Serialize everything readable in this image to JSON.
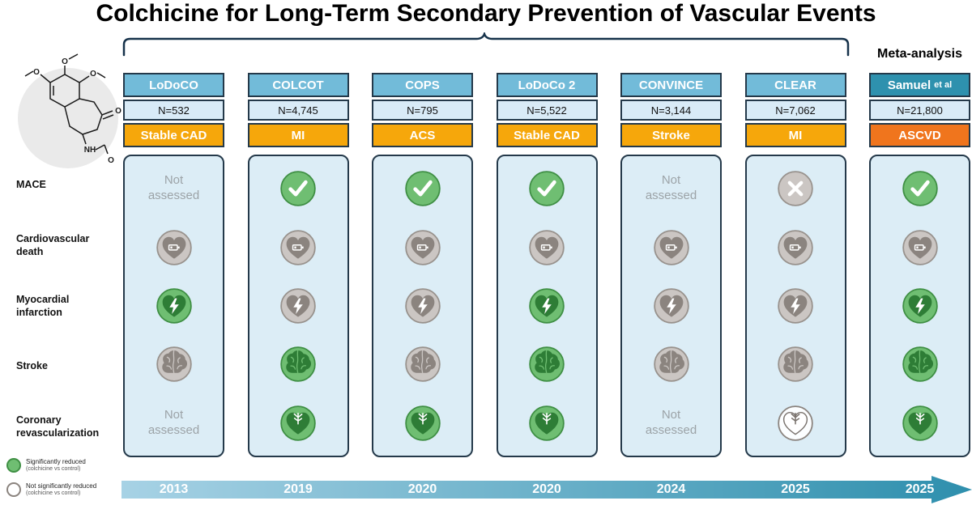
{
  "title": "Colchicine for Long-Term Secondary Prevention of Vascular Events",
  "meta_label": "Meta-analysis",
  "molecule": "colchicine chemical structure",
  "row_labels": [
    "MACE",
    "Cardiovascular death",
    "Myocardial infarction",
    "Stroke",
    "Coronary revascularization"
  ],
  "legend": [
    {
      "line1": "Significantly reduced",
      "line2": "(colchicine vs control)",
      "state": "green"
    },
    {
      "line1": "Not significantly reduced",
      "line2": "(colchicine vs control)",
      "state": "white"
    }
  ],
  "colors": {
    "header_blue": "#72BBD9",
    "meta_teal": "#2E91AE",
    "orange": "#F6A70B",
    "meta_orange": "#F0751D",
    "panel_blue": "#DCEDF6",
    "green_icon": "#6FBE72",
    "gray_icon": "#CBC6C3",
    "timeline_start": "#A7D2E5",
    "timeline_end": "#2E8FAD"
  },
  "columns": [
    {
      "name": "LoDoCO",
      "suffix": "",
      "n": "N=532",
      "population": "Stable CAD",
      "year": "2013",
      "meta": false,
      "cells": [
        {
          "kind": "na",
          "text": "Not assessed"
        },
        {
          "kind": "heart-battery",
          "state": "gray"
        },
        {
          "kind": "heart-bolt",
          "state": "green"
        },
        {
          "kind": "brain",
          "state": "gray"
        },
        {
          "kind": "na",
          "text": "Not assessed"
        }
      ]
    },
    {
      "name": "COLCOT",
      "suffix": "",
      "n": "N=4,745",
      "population": "MI",
      "year": "2019",
      "meta": false,
      "cells": [
        {
          "kind": "check",
          "state": "green"
        },
        {
          "kind": "heart-battery",
          "state": "gray"
        },
        {
          "kind": "heart-bolt",
          "state": "gray"
        },
        {
          "kind": "brain",
          "state": "green"
        },
        {
          "kind": "heart-vessel",
          "state": "green"
        }
      ]
    },
    {
      "name": "COPS",
      "suffix": "",
      "n": "N=795",
      "population": "ACS",
      "year": "2020",
      "meta": false,
      "cells": [
        {
          "kind": "check",
          "state": "green"
        },
        {
          "kind": "heart-battery",
          "state": "gray"
        },
        {
          "kind": "heart-bolt",
          "state": "gray"
        },
        {
          "kind": "brain",
          "state": "gray"
        },
        {
          "kind": "heart-vessel",
          "state": "green"
        }
      ]
    },
    {
      "name": "LoDoCo 2",
      "suffix": "",
      "n": "N=5,522",
      "population": "Stable CAD",
      "year": "2020",
      "meta": false,
      "cells": [
        {
          "kind": "check",
          "state": "green"
        },
        {
          "kind": "heart-battery",
          "state": "gray"
        },
        {
          "kind": "heart-bolt",
          "state": "green"
        },
        {
          "kind": "brain",
          "state": "green"
        },
        {
          "kind": "heart-vessel",
          "state": "green"
        }
      ]
    },
    {
      "name": "CONVINCE",
      "suffix": "",
      "n": "N=3,144",
      "population": "Stroke",
      "year": "2024",
      "meta": false,
      "cells": [
        {
          "kind": "na",
          "text": "Not assessed"
        },
        {
          "kind": "heart-battery",
          "state": "gray"
        },
        {
          "kind": "heart-bolt",
          "state": "gray"
        },
        {
          "kind": "brain",
          "state": "gray"
        },
        {
          "kind": "na",
          "text": "Not assessed"
        }
      ]
    },
    {
      "name": "CLEAR",
      "suffix": "",
      "n": "N=7,062",
      "population": "MI",
      "year": "2025",
      "meta": false,
      "cells": [
        {
          "kind": "cross",
          "state": "gray"
        },
        {
          "kind": "heart-battery",
          "state": "gray"
        },
        {
          "kind": "heart-bolt",
          "state": "gray"
        },
        {
          "kind": "brain",
          "state": "gray"
        },
        {
          "kind": "heart-vessel",
          "state": "white"
        }
      ]
    },
    {
      "name": "Samuel",
      "suffix": "et al",
      "n": "N=21,800",
      "population": "ASCVD",
      "year": "2025",
      "meta": true,
      "cells": [
        {
          "kind": "check",
          "state": "green"
        },
        {
          "kind": "heart-battery",
          "state": "gray"
        },
        {
          "kind": "heart-bolt",
          "state": "green"
        },
        {
          "kind": "brain",
          "state": "green"
        },
        {
          "kind": "heart-vessel",
          "state": "green"
        }
      ]
    }
  ]
}
